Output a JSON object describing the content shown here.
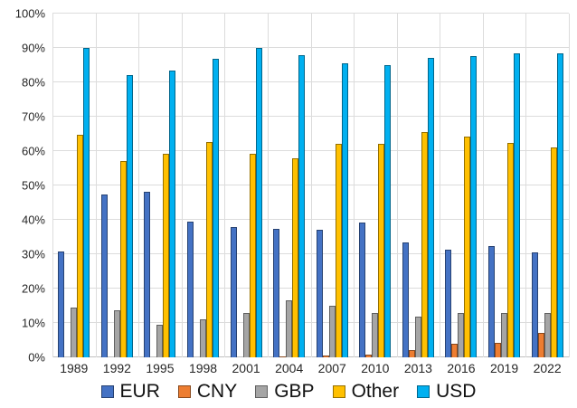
{
  "chart_data": {
    "type": "bar",
    "title": "",
    "xlabel": "",
    "ylabel": "",
    "categories": [
      "1989",
      "1992",
      "1995",
      "1998",
      "2001",
      "2004",
      "2007",
      "2010",
      "2013",
      "2016",
      "2019",
      "2022"
    ],
    "series": [
      {
        "name": "EUR",
        "color": "#4472C4",
        "values": [
          30.7,
          47.3,
          48.1,
          39.5,
          37.9,
          37.4,
          37.0,
          39.1,
          33.4,
          31.4,
          32.3,
          30.5
        ]
      },
      {
        "name": "CNY",
        "color": "#ED7D31",
        "values": [
          0,
          0,
          0,
          0,
          0,
          0.1,
          0.5,
          0.9,
          2.2,
          4.0,
          4.3,
          7.0
        ]
      },
      {
        "name": "GBP",
        "color": "#A5A5A5",
        "values": [
          14.6,
          13.6,
          9.4,
          11.0,
          13.0,
          16.5,
          14.9,
          12.9,
          11.8,
          12.8,
          12.8,
          12.9
        ]
      },
      {
        "name": "Other",
        "color": "#FFC000",
        "values": [
          64.7,
          57.1,
          59.2,
          62.7,
          59.2,
          58.0,
          62.0,
          62.2,
          65.6,
          64.2,
          62.3,
          61.1
        ]
      },
      {
        "name": "USD",
        "color": "#00B0F0",
        "values": [
          90.0,
          82.0,
          83.3,
          86.8,
          89.9,
          88.0,
          85.6,
          84.9,
          87.0,
          87.6,
          88.3,
          88.5
        ]
      }
    ],
    "ylim": [
      0,
      100
    ],
    "ytick_step": 10,
    "ytick_labels": [
      "0%",
      "10%",
      "20%",
      "30%",
      "40%",
      "50%",
      "60%",
      "70%",
      "80%",
      "90%",
      "100%"
    ],
    "grid": true,
    "legend_position": "bottom"
  }
}
